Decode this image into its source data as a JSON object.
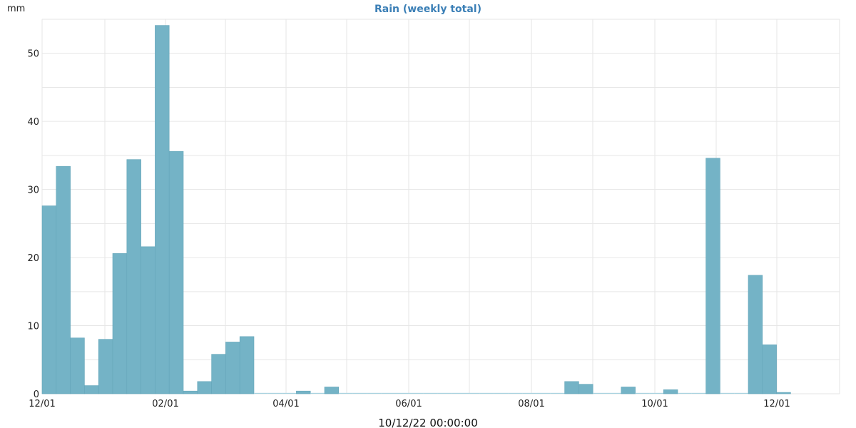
{
  "chart_data": {
    "type": "bar",
    "title": "Rain (weekly total)",
    "ylabel": "mm",
    "xlabel": "",
    "footer_timestamp": "10/12/22 00:00:00",
    "ylim": [
      0,
      55
    ],
    "y_ticks": [
      "0",
      "10",
      "20",
      "30",
      "40",
      "50"
    ],
    "x_ticks": [
      "12/01",
      "02/01",
      "04/01",
      "06/01",
      "08/01",
      "10/01",
      "12/01"
    ],
    "grid": true,
    "bar_color": "#74b3c6",
    "baseline_color": "#a9d3e0",
    "title_color": "#3b7fb6",
    "values": [
      27.6,
      33.4,
      8.2,
      1.2,
      8.0,
      20.6,
      34.4,
      21.6,
      54.1,
      35.6,
      0.4,
      1.8,
      5.8,
      7.6,
      8.4,
      0,
      0,
      0,
      0.4,
      0,
      1.0,
      0,
      0,
      0,
      0,
      0,
      0,
      0,
      0,
      0,
      0,
      0,
      0,
      0,
      0,
      0,
      0,
      1.8,
      1.4,
      0,
      0,
      1.0,
      0,
      0,
      0.6,
      0,
      0,
      34.6,
      0,
      0,
      17.4,
      7.2,
      0.2
    ]
  }
}
